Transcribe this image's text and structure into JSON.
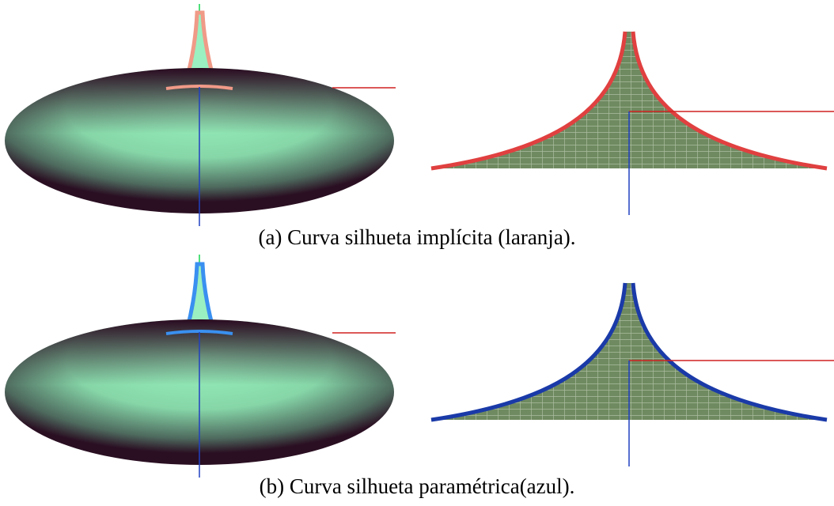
{
  "figure": {
    "captions": [
      "(a) Curva silhueta implícita (laranja).",
      "(b) Curva silhueta paramétrica(azul)."
    ]
  }
}
